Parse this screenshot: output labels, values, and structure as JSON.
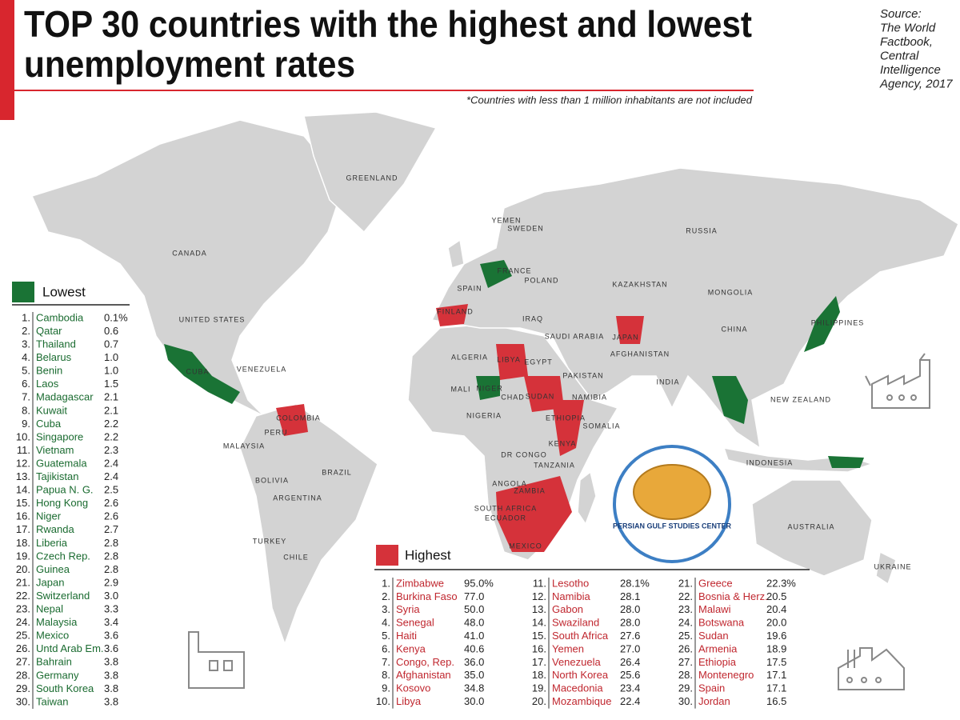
{
  "header": {
    "title_line1": "TOP 30 countries with the highest and lowest",
    "title_line2": "unemployment rates",
    "note": "*Countries with less than 1 million inhabitants are not included",
    "source": [
      "Source:",
      "The World",
      "Factbook,",
      "Central",
      "Intelligence",
      "Agency, 2017"
    ]
  },
  "map_labels": [
    "GREENLAND",
    "CANADA",
    "UNITED STATES",
    "RUSSIA",
    "KAZAKHSTAN",
    "MONGOLIA",
    "CHINA",
    "INDIA",
    "BRAZIL",
    "AUSTRALIA",
    "INDONESIA",
    "ALGERIA",
    "LIBYA",
    "EGYPT",
    "SUDAN",
    "CHAD",
    "MALI",
    "NIGER",
    "NIGERIA",
    "ETHIOPIA",
    "KENYA",
    "SOMALIA",
    "DR CONGO",
    "TANZANIA",
    "ANGOLA",
    "ZAMBIA",
    "SOUTH AFRICA",
    "MEXICO",
    "CUBA",
    "VENEZUELA",
    "COLOMBIA",
    "PERU",
    "BOLIVIA",
    "ARGENTINA",
    "CHILE",
    "TURKEY",
    "IRAQ",
    "SAUDI ARABIA",
    "PAKISTAN",
    "AFGHANISTAN",
    "JAPAN",
    "PHILIPPINES",
    "NEW ZEALAND",
    "UKRAINE",
    "POLAND",
    "FRANCE",
    "SPAIN",
    "FINLAND",
    "SWEDEN",
    "YEMEN",
    "NAMIBIA",
    "ECUADOR",
    "MALAYSIA"
  ],
  "logo": "PERSIAN GULF STUDIES CENTER",
  "lowest": {
    "title": "Lowest",
    "items": [
      [
        "1.",
        "Cambodia",
        "0.1%"
      ],
      [
        "2.",
        "Qatar",
        "0.6"
      ],
      [
        "3.",
        "Thailand",
        "0.7"
      ],
      [
        "4.",
        "Belarus",
        "1.0"
      ],
      [
        "5.",
        "Benin",
        "1.0"
      ],
      [
        "6.",
        "Laos",
        "1.5"
      ],
      [
        "7.",
        "Madagascar",
        "2.1"
      ],
      [
        "8.",
        "Kuwait",
        "2.1"
      ],
      [
        "9.",
        "Cuba",
        "2.2"
      ],
      [
        "10.",
        "Singapore",
        "2.2"
      ],
      [
        "11.",
        "Vietnam",
        "2.3"
      ],
      [
        "12.",
        "Guatemala",
        "2.4"
      ],
      [
        "13.",
        "Tajikistan",
        "2.4"
      ],
      [
        "14.",
        "Papua N. G.",
        "2.5"
      ],
      [
        "15.",
        "Hong Kong",
        "2.6"
      ],
      [
        "16.",
        "Niger",
        "2.6"
      ],
      [
        "17.",
        "Rwanda",
        "2.7"
      ],
      [
        "18.",
        "Liberia",
        "2.8"
      ],
      [
        "19.",
        "Czech Rep.",
        "2.8"
      ],
      [
        "20.",
        "Guinea",
        "2.8"
      ],
      [
        "21.",
        "Japan",
        "2.9"
      ],
      [
        "22.",
        "Switzerland",
        "3.0"
      ],
      [
        "23.",
        "Nepal",
        "3.3"
      ],
      [
        "24.",
        "Malaysia",
        "3.4"
      ],
      [
        "25.",
        "Mexico",
        "3.6"
      ],
      [
        "26.",
        "Untd Arab Em.",
        "3.6"
      ],
      [
        "27.",
        "Bahrain",
        "3.8"
      ],
      [
        "28.",
        "Germany",
        "3.8"
      ],
      [
        "29.",
        "South Korea",
        "3.8"
      ],
      [
        "30.",
        "Taiwan",
        "3.8"
      ]
    ]
  },
  "highest": {
    "title": "Highest",
    "items": [
      [
        "1.",
        "Zimbabwe",
        "95.0%"
      ],
      [
        "2.",
        "Burkina Faso",
        "77.0"
      ],
      [
        "3.",
        "Syria",
        "50.0"
      ],
      [
        "4.",
        "Senegal",
        "48.0"
      ],
      [
        "5.",
        "Haiti",
        "41.0"
      ],
      [
        "6.",
        "Kenya",
        "40.6"
      ],
      [
        "7.",
        "Congo, Rep.",
        "36.0"
      ],
      [
        "8.",
        "Afghanistan",
        "35.0"
      ],
      [
        "9.",
        "Kosovo",
        "34.8"
      ],
      [
        "10.",
        "Libya",
        "30.0"
      ],
      [
        "11.",
        "Lesotho",
        "28.1%"
      ],
      [
        "12.",
        "Namibia",
        "28.1"
      ],
      [
        "13.",
        "Gabon",
        "28.0"
      ],
      [
        "14.",
        "Swaziland",
        "28.0"
      ],
      [
        "15.",
        "South Africa",
        "27.6"
      ],
      [
        "16.",
        "Yemen",
        "27.0"
      ],
      [
        "17.",
        "Venezuela",
        "26.4"
      ],
      [
        "18.",
        "North Korea",
        "25.6"
      ],
      [
        "19.",
        "Macedonia",
        "23.4"
      ],
      [
        "20.",
        "Mozambique",
        "22.4"
      ],
      [
        "21.",
        "Greece",
        "22.3%"
      ],
      [
        "22.",
        "Bosnia & Herz.",
        "20.5"
      ],
      [
        "23.",
        "Malawi",
        "20.4"
      ],
      [
        "24.",
        "Botswana",
        "20.0"
      ],
      [
        "25.",
        "Sudan",
        "19.6"
      ],
      [
        "26.",
        "Armenia",
        "18.9"
      ],
      [
        "27.",
        "Ethiopia",
        "17.5"
      ],
      [
        "28.",
        "Montenegro",
        "17.1"
      ],
      [
        "29.",
        "Spain",
        "17.1"
      ],
      [
        "30.",
        "Jordan",
        "16.5"
      ]
    ]
  }
}
